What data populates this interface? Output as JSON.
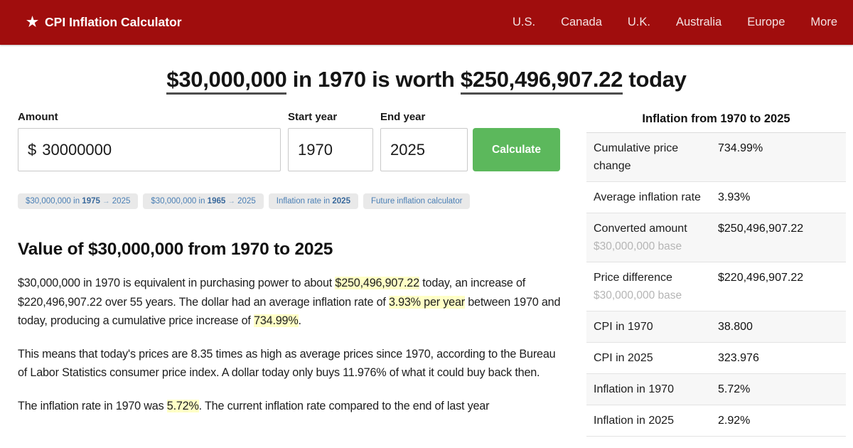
{
  "colors": {
    "header_bg": "#a00d0d",
    "accent_green": "#5cb85c",
    "link_blue": "#4a7fb5",
    "highlight_yellow": "#ffffc6"
  },
  "header": {
    "logo_icon": "star-icon",
    "logo_text": "CPI Inflation Calculator",
    "nav": [
      "U.S.",
      "Canada",
      "U.K.",
      "Australia",
      "Europe",
      "More"
    ]
  },
  "page_title_segments": [
    {
      "text": "$30,000,000",
      "underline": true
    },
    {
      "text": " in 1970 is worth ",
      "underline": false
    },
    {
      "text": "$250,496,907.22",
      "underline": true
    },
    {
      "text": " today",
      "underline": false
    }
  ],
  "form": {
    "amount_label": "Amount",
    "currency_prefix": "$",
    "amount_value": "30000000",
    "start_year_label": "Start year",
    "start_year_value": "1970",
    "end_year_label": "End year",
    "end_year_value": "2025",
    "calculate_label": "Calculate"
  },
  "quick_links": [
    {
      "segments": [
        {
          "text": "$30,000,000 in "
        },
        {
          "text": "1975",
          "bold": true
        },
        {
          "text": " ",
          "arrow": false
        },
        {
          "text": "→",
          "arrow": true
        },
        {
          "text": " 2025"
        }
      ]
    },
    {
      "segments": [
        {
          "text": "$30,000,000 in "
        },
        {
          "text": "1965",
          "bold": true
        },
        {
          "text": " ",
          "arrow": false
        },
        {
          "text": "→",
          "arrow": true
        },
        {
          "text": " 2025"
        }
      ]
    },
    {
      "segments": [
        {
          "text": "Inflation rate in "
        },
        {
          "text": "2025",
          "bold": true
        }
      ]
    },
    {
      "segments": [
        {
          "text": "Future inflation calculator"
        }
      ]
    }
  ],
  "article": {
    "heading": "Value of $30,000,000 from 1970 to 2025",
    "paragraphs": [
      [
        {
          "text": "$30,000,000 in 1970 is equivalent in purchasing power to about "
        },
        {
          "text": "$250,496,907.22",
          "highlight": true
        },
        {
          "text": " today, an increase of $220,496,907.22 over 55 years. The dollar had an average inflation rate of "
        },
        {
          "text": "3.93% per year",
          "highlight": true
        },
        {
          "text": " between 1970 and today, producing a cumulative price increase of "
        },
        {
          "text": "734.99%",
          "highlight": true
        },
        {
          "text": "."
        }
      ],
      [
        {
          "text": "This means that today's prices are 8.35 times as high as average prices since 1970, according to the Bureau of Labor Statistics consumer price index. A dollar today only buys 11.976% of what it could buy back then."
        }
      ],
      [
        {
          "text": "The inflation rate in 1970 was "
        },
        {
          "text": "5.72%",
          "highlight": true
        },
        {
          "text": ". The current inflation rate compared to the end of last year"
        }
      ]
    ]
  },
  "sidebar": {
    "title": "Inflation from 1970 to 2025",
    "rows": [
      {
        "label": "Cumulative price change",
        "value": "734.99%"
      },
      {
        "label": "Average inflation rate",
        "value": "3.93%"
      },
      {
        "label": "Converted amount",
        "sub": "$30,000,000 base",
        "value": "$250,496,907.22"
      },
      {
        "label": "Price difference",
        "sub": "$30,000,000 base",
        "value": "$220,496,907.22"
      },
      {
        "label": "CPI in 1970",
        "value": "38.800"
      },
      {
        "label": "CPI in 2025",
        "value": "323.976"
      },
      {
        "label": "Inflation in 1970",
        "value": "5.72%"
      },
      {
        "label": "Inflation in 2025",
        "value": "2.92%"
      }
    ]
  }
}
